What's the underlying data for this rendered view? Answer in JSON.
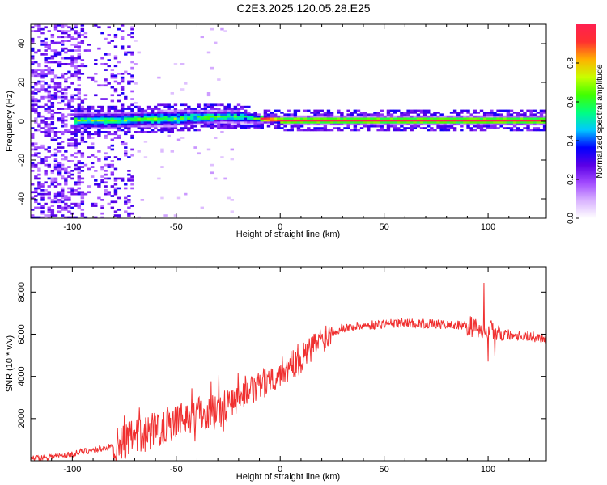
{
  "figure_title": "C2E3.2025.120.05.28.E25",
  "chart_data": [
    {
      "type": "heatmap",
      "xlabel": "Height of straight line (km)",
      "ylabel": "Frequency (Hz)",
      "xlim": [
        -120,
        128
      ],
      "ylim": [
        -50,
        50
      ],
      "xticks": [
        -100,
        -50,
        0,
        50,
        100
      ],
      "yticks": [
        -40,
        -20,
        0,
        20,
        40
      ],
      "colorbar": {
        "label": "Normalized spectral amplitude",
        "range": [
          0,
          1
        ],
        "ticks": [
          0.0,
          0.2,
          0.4,
          0.6,
          0.8
        ],
        "tick_labels": [
          "0.0",
          "0.2",
          "0.4",
          "0.6",
          "0.8"
        ],
        "colormap": [
          "#ffffff",
          "#d9b3ff",
          "#a24bff",
          "#5b00e6",
          "#0000ff",
          "#00c8ff",
          "#00ff80",
          "#40ff00",
          "#c8ff00",
          "#ffb000",
          "#ff3030",
          "#ff2050"
        ]
      },
      "ridge": {
        "x": [
          -100,
          -90,
          -80,
          -70,
          -60,
          -50,
          -40,
          -30,
          -20,
          -10,
          0,
          20,
          50,
          80,
          100,
          128
        ],
        "center_hz": [
          0,
          0,
          0,
          0.5,
          1,
          1,
          1.5,
          2,
          2,
          1,
          0,
          0,
          0,
          0,
          0,
          0
        ],
        "halfwidth_hz": [
          4,
          4,
          4,
          4,
          4,
          4,
          3.5,
          3,
          3,
          2,
          2,
          2,
          2,
          2,
          2,
          2
        ]
      }
    },
    {
      "type": "line",
      "xlabel": "Height of straight line (km)",
      "ylabel": "SNR (10 * v/v)",
      "xlim": [
        -120,
        128
      ],
      "ylim": [
        0,
        9200
      ],
      "xticks": [
        -100,
        -50,
        0,
        50,
        100
      ],
      "yticks": [
        2000,
        4000,
        6000,
        8000
      ],
      "color": "#f03030",
      "series": [
        {
          "x": [
            -120,
            -110,
            -100,
            -95,
            -90,
            -85,
            -80,
            -75,
            -70,
            -65,
            -60,
            -55,
            -50,
            -45,
            -40,
            -35,
            -30,
            -25,
            -20,
            -15,
            -10,
            -5,
            0,
            5,
            10,
            15,
            20,
            25,
            30,
            40,
            50,
            60,
            70,
            80,
            90,
            95,
            100,
            102,
            105,
            110,
            120,
            128
          ],
          "y": [
            100,
            200,
            300,
            450,
            500,
            600,
            700,
            900,
            1100,
            1300,
            1500,
            1700,
            1900,
            2100,
            2200,
            2300,
            2400,
            2700,
            3000,
            3200,
            3500,
            3900,
            4200,
            4500,
            4800,
            5300,
            5800,
            6100,
            6300,
            6400,
            6500,
            6550,
            6500,
            6450,
            6400,
            6300,
            6300,
            6200,
            6100,
            6000,
            5900,
            5800
          ]
        }
      ]
    }
  ]
}
